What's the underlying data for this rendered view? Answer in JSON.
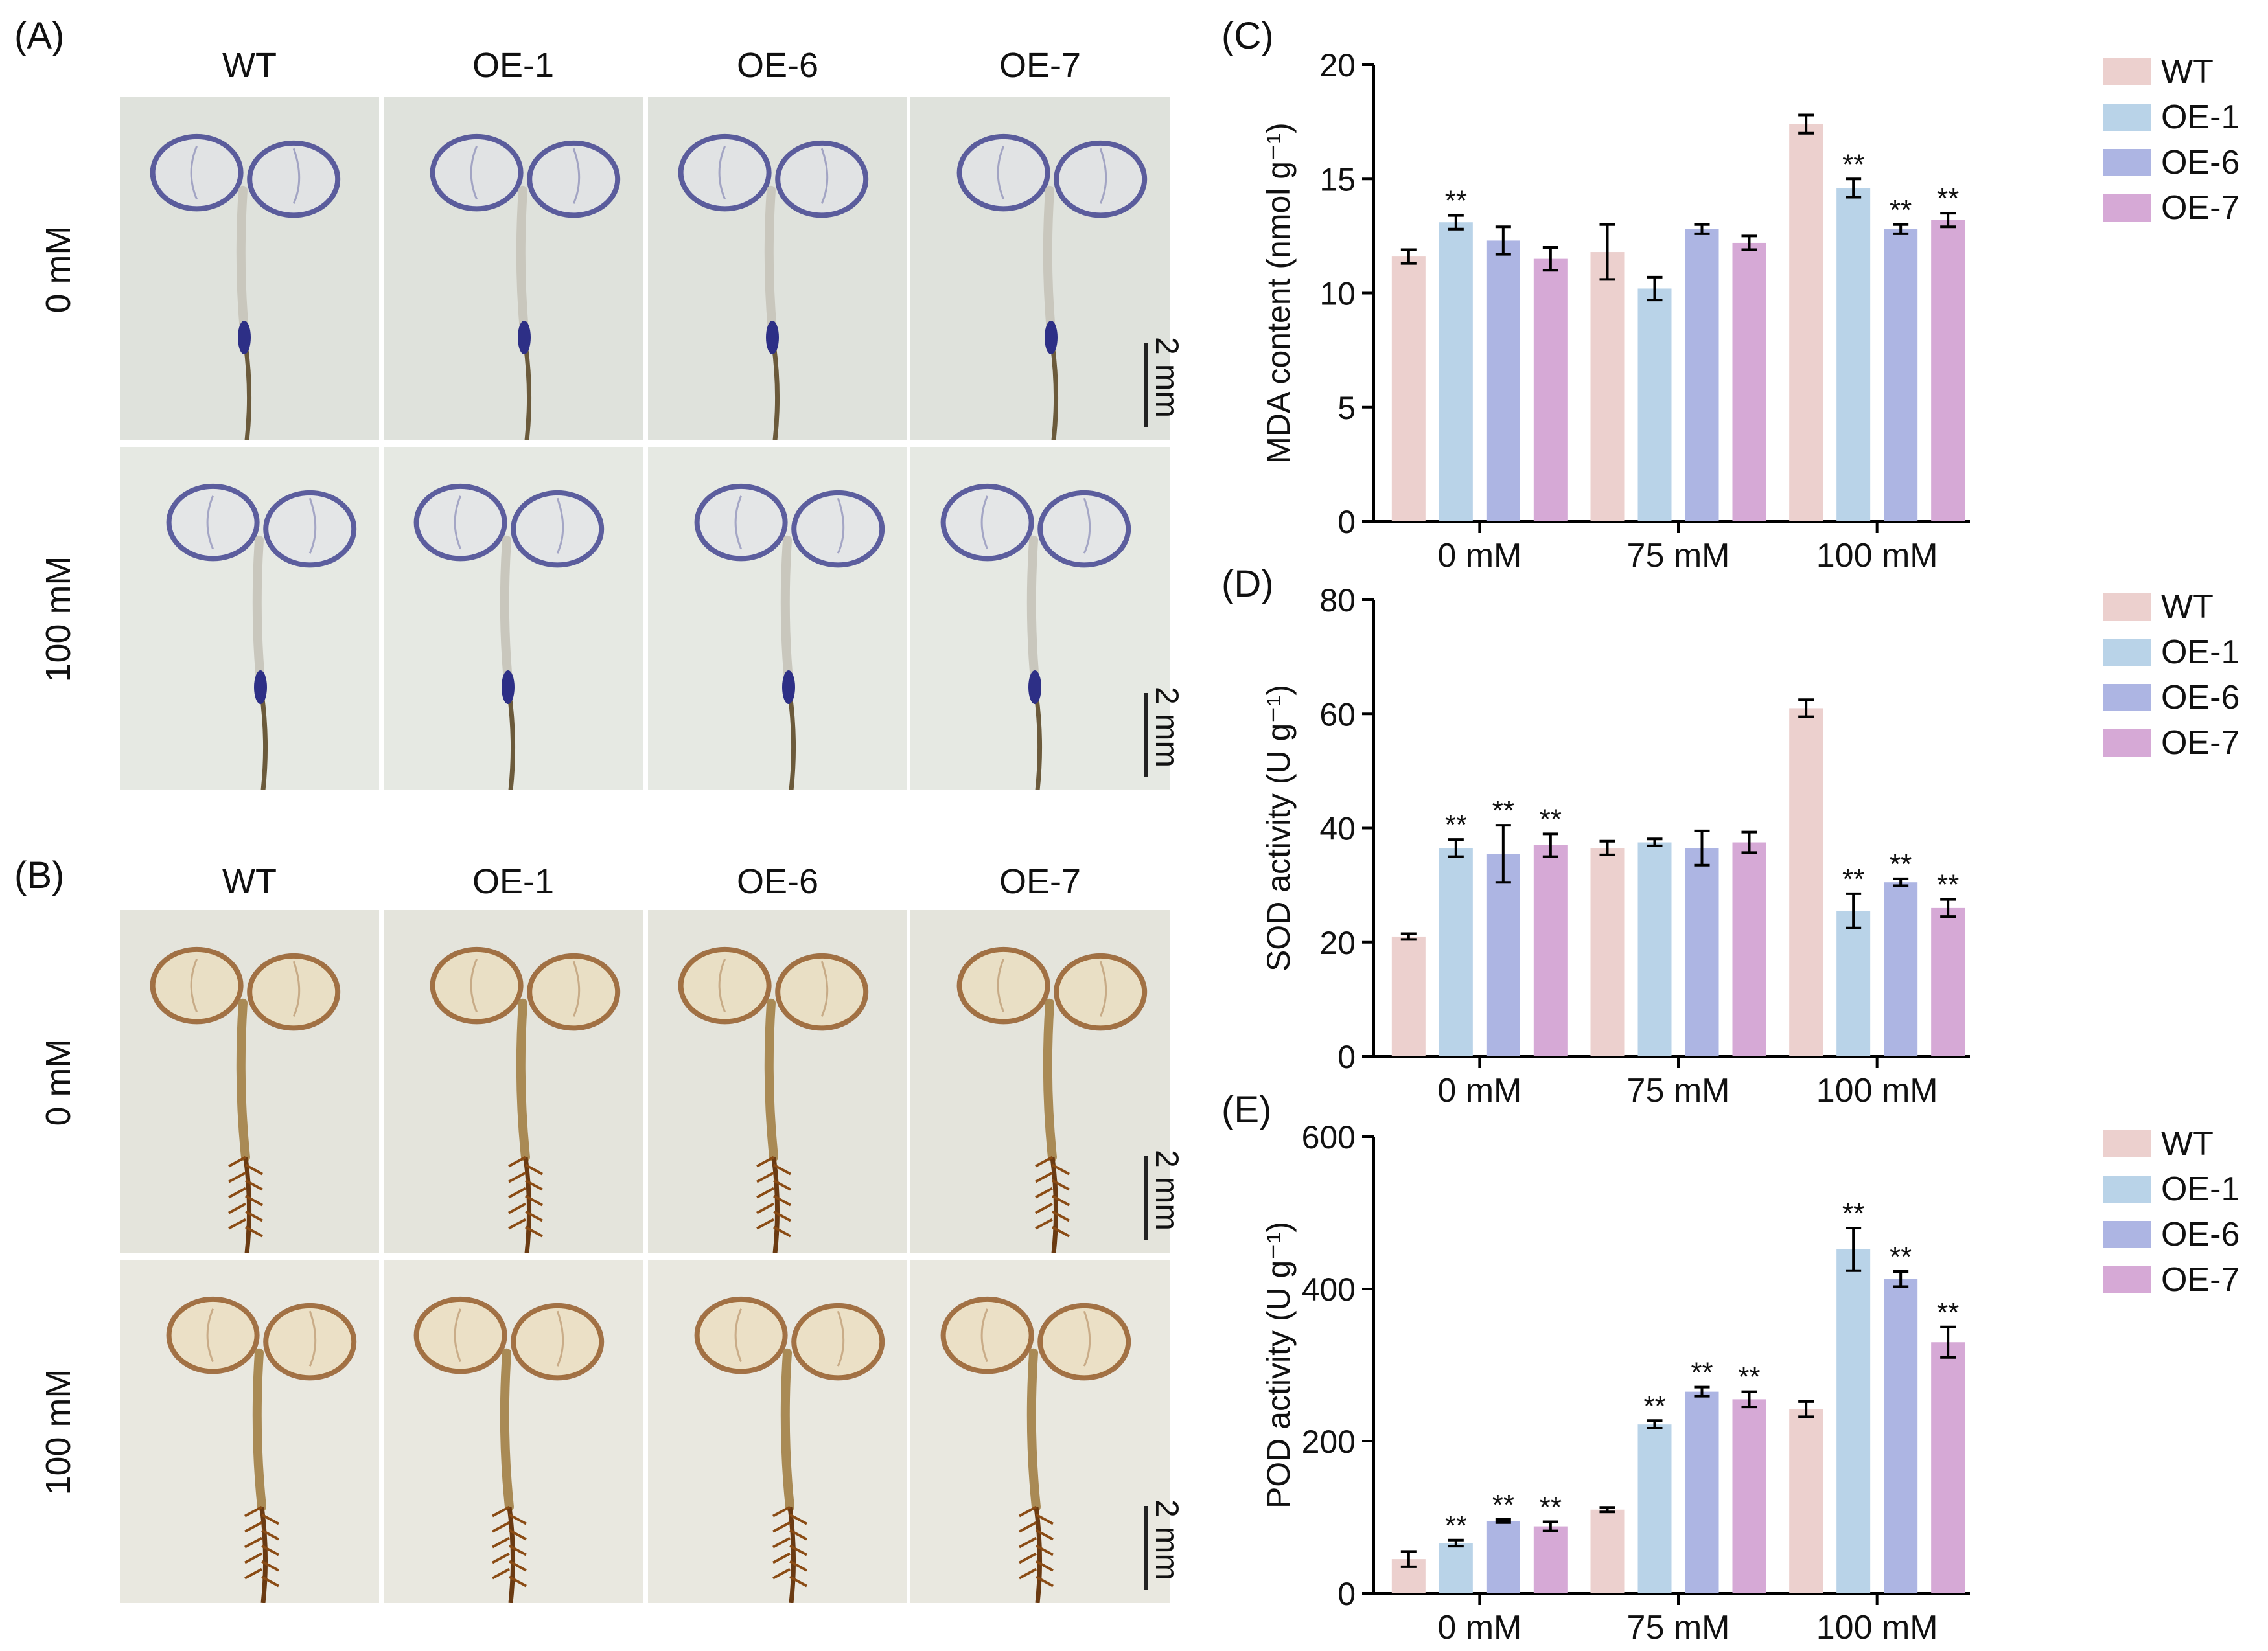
{
  "panels": {
    "A": "(A)",
    "B": "(B)",
    "C": "(C)",
    "D": "(D)",
    "E": "(E)"
  },
  "photo_panels": {
    "columns": [
      "WT",
      "OE-1",
      "OE-6",
      "OE-7"
    ],
    "rows": [
      "0 mM",
      "100 mM"
    ],
    "scale": "2 mm",
    "nbt_color": "#2d2f86",
    "dab_color": "#8a4b14"
  },
  "colors": {
    "WT": "#ecd0ce",
    "OE-1": "#b9d3e8",
    "OE-6": "#adb5e3",
    "OE-7": "#d6a9d6"
  },
  "chart_data": [
    {
      "type": "bar",
      "panel": "C",
      "ylabel": "MDA content (nmol g⁻¹)",
      "ylim": [
        0,
        20
      ],
      "yticks": [
        0,
        5,
        10,
        15,
        20
      ],
      "categories": [
        "0 mM",
        "75 mM",
        "100 mM"
      ],
      "series": [
        {
          "name": "WT",
          "values": [
            11.6,
            11.8,
            17.4
          ],
          "errors": [
            0.3,
            1.2,
            0.4
          ],
          "sig": [
            "",
            "",
            ""
          ]
        },
        {
          "name": "OE-1",
          "values": [
            13.1,
            10.2,
            14.6
          ],
          "errors": [
            0.3,
            0.5,
            0.4
          ],
          "sig": [
            "**",
            "",
            "**"
          ]
        },
        {
          "name": "OE-6",
          "values": [
            12.3,
            12.8,
            12.8
          ],
          "errors": [
            0.6,
            0.2,
            0.2
          ],
          "sig": [
            "",
            "",
            "**"
          ]
        },
        {
          "name": "OE-7",
          "values": [
            11.5,
            12.2,
            13.2
          ],
          "errors": [
            0.5,
            0.3,
            0.3
          ],
          "sig": [
            "",
            "",
            "**"
          ]
        }
      ]
    },
    {
      "type": "bar",
      "panel": "D",
      "ylabel": "SOD activity (U g⁻¹)",
      "ylim": [
        0,
        80
      ],
      "yticks": [
        0,
        20,
        40,
        60,
        80
      ],
      "categories": [
        "0 mM",
        "75 mM",
        "100 mM"
      ],
      "series": [
        {
          "name": "WT",
          "values": [
            21,
            36.5,
            61
          ],
          "errors": [
            0.5,
            1.2,
            1.5
          ],
          "sig": [
            "",
            "",
            ""
          ]
        },
        {
          "name": "OE-1",
          "values": [
            36.5,
            37.5,
            25.5
          ],
          "errors": [
            1.5,
            0.6,
            3.0
          ],
          "sig": [
            "**",
            "",
            "**"
          ]
        },
        {
          "name": "OE-6",
          "values": [
            35.5,
            36.5,
            30.5
          ],
          "errors": [
            5.0,
            3.0,
            0.6
          ],
          "sig": [
            "**",
            "",
            "**"
          ]
        },
        {
          "name": "OE-7",
          "values": [
            37,
            37.5,
            26
          ],
          "errors": [
            2.0,
            1.8,
            1.5
          ],
          "sig": [
            "**",
            "",
            "**"
          ]
        }
      ]
    },
    {
      "type": "bar",
      "panel": "E",
      "ylabel": "POD activity (U g⁻¹)",
      "ylim": [
        0,
        600
      ],
      "yticks": [
        0,
        200,
        400,
        600
      ],
      "categories": [
        "0 mM",
        "75 mM",
        "100 mM"
      ],
      "series": [
        {
          "name": "WT",
          "values": [
            45,
            110,
            242
          ],
          "errors": [
            10,
            3,
            10
          ],
          "sig": [
            "",
            "",
            ""
          ]
        },
        {
          "name": "OE-1",
          "values": [
            66,
            222,
            452
          ],
          "errors": [
            4,
            5,
            28
          ],
          "sig": [
            "**",
            "**",
            "**"
          ]
        },
        {
          "name": "OE-6",
          "values": [
            95,
            265,
            413
          ],
          "errors": [
            2,
            6,
            10
          ],
          "sig": [
            "**",
            "**",
            "**"
          ]
        },
        {
          "name": "OE-7",
          "values": [
            88,
            255,
            330
          ],
          "errors": [
            6,
            10,
            20
          ],
          "sig": [
            "**",
            "**",
            "**"
          ]
        }
      ]
    }
  ]
}
